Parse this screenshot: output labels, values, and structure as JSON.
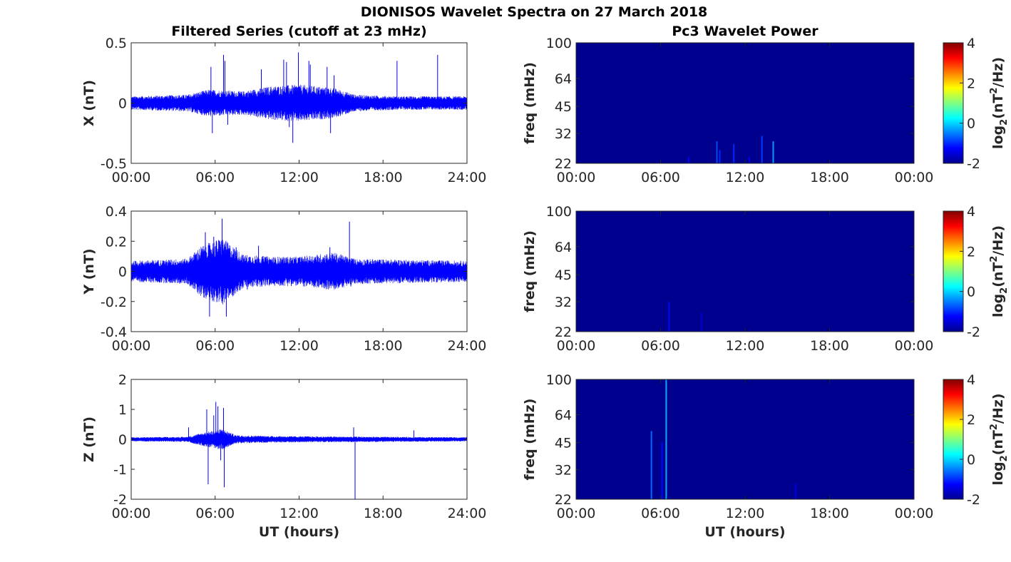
{
  "figure_title": "DIONISOS Wavelet Spectra on 27 March 2018",
  "colors": {
    "series": "#0000ff",
    "spectrogram_bg": "#00008f",
    "axis": "#262626"
  },
  "chart_data": [
    {
      "type": "line",
      "panel": "filtered-x",
      "title": "Filtered Series (cutoff at 23 mHz)",
      "ylabel": "X (nT)",
      "xlabel": "",
      "xticks": [
        "00:00",
        "06:00",
        "12:00",
        "18:00",
        "24:00"
      ],
      "xlim": [
        0,
        24
      ],
      "ylim": [
        -0.5,
        0.5
      ],
      "yticks": [
        -0.5,
        0,
        0.5
      ],
      "yticklabels": [
        "-0.5",
        "0",
        "0.5"
      ],
      "series": [
        {
          "noise_envelope": [
            [
              0,
              0.04
            ],
            [
              4,
              0.05
            ],
            [
              5.5,
              0.08
            ],
            [
              8,
              0.07
            ],
            [
              10,
              0.1
            ],
            [
              12,
              0.11
            ],
            [
              14.5,
              0.09
            ],
            [
              16,
              0.05
            ],
            [
              19,
              0.04
            ],
            [
              24,
              0.04
            ]
          ],
          "spikes": [
            [
              5.7,
              0.3
            ],
            [
              5.8,
              -0.25
            ],
            [
              6.6,
              0.4
            ],
            [
              6.7,
              0.35
            ],
            [
              6.9,
              -0.18
            ],
            [
              9.3,
              0.28
            ],
            [
              10.9,
              0.36
            ],
            [
              11.1,
              0.34
            ],
            [
              11.3,
              -0.2
            ],
            [
              11.55,
              -0.33
            ],
            [
              11.95,
              0.42
            ],
            [
              12.7,
              0.35
            ],
            [
              12.8,
              0.32
            ],
            [
              14.0,
              0.3
            ],
            [
              14.25,
              -0.25
            ],
            [
              14.5,
              0.23
            ],
            [
              19.0,
              0.35
            ],
            [
              21.9,
              0.4
            ]
          ]
        }
      ]
    },
    {
      "type": "line",
      "panel": "filtered-y",
      "title": "",
      "ylabel": "Y (nT)",
      "xlabel": "",
      "xticks": [
        "00:00",
        "06:00",
        "12:00",
        "18:00",
        "24:00"
      ],
      "xlim": [
        0,
        24
      ],
      "ylim": [
        -0.4,
        0.4
      ],
      "yticks": [
        -0.4,
        -0.2,
        0,
        0.2,
        0.4
      ],
      "yticklabels": [
        "-0.4",
        "-0.2",
        "0",
        "0.2",
        "0.4"
      ],
      "series": [
        {
          "noise_envelope": [
            [
              0,
              0.05
            ],
            [
              4,
              0.06
            ],
            [
              5,
              0.12
            ],
            [
              6.5,
              0.16
            ],
            [
              8,
              0.08
            ],
            [
              10,
              0.07
            ],
            [
              12,
              0.07
            ],
            [
              14.5,
              0.09
            ],
            [
              16,
              0.06
            ],
            [
              24,
              0.05
            ]
          ],
          "spikes": [
            [
              5.3,
              0.26
            ],
            [
              5.6,
              -0.3
            ],
            [
              5.9,
              0.23
            ],
            [
              6.1,
              0.2
            ],
            [
              6.5,
              0.35
            ],
            [
              6.8,
              -0.3
            ],
            [
              7.5,
              0.16
            ],
            [
              8.3,
              -0.12
            ],
            [
              9.1,
              0.17
            ],
            [
              14.2,
              0.16
            ],
            [
              15.6,
              0.33
            ],
            [
              15.7,
              -0.1
            ]
          ]
        }
      ]
    },
    {
      "type": "line",
      "panel": "filtered-z",
      "title": "",
      "ylabel": "Z (nT)",
      "xlabel": "UT (hours)",
      "xticks": [
        "00:00",
        "06:00",
        "12:00",
        "18:00",
        "24:00"
      ],
      "xlim": [
        0,
        24
      ],
      "ylim": [
        -2,
        2
      ],
      "yticks": [
        -2,
        -1,
        0,
        1,
        2
      ],
      "yticklabels": [
        "-2",
        "-1",
        "0",
        "1",
        "2"
      ],
      "series": [
        {
          "noise_envelope": [
            [
              0,
              0.05
            ],
            [
              4,
              0.06
            ],
            [
              5,
              0.15
            ],
            [
              6.5,
              0.25
            ],
            [
              7.5,
              0.1
            ],
            [
              10,
              0.08
            ],
            [
              13,
              0.07
            ],
            [
              24,
              0.05
            ]
          ],
          "spikes": [
            [
              4.1,
              0.4
            ],
            [
              5.4,
              1.0
            ],
            [
              5.5,
              -1.5
            ],
            [
              5.9,
              0.8
            ],
            [
              6.05,
              1.25
            ],
            [
              6.2,
              1.1
            ],
            [
              6.4,
              -0.7
            ],
            [
              6.6,
              1.05
            ],
            [
              6.65,
              -1.6
            ],
            [
              15.9,
              0.4
            ],
            [
              16.0,
              -2.0
            ],
            [
              20.2,
              0.3
            ]
          ]
        }
      ]
    },
    {
      "type": "heatmap",
      "panel": "wavelet-x",
      "title": "Pc3 Wavelet Power",
      "ylabel": "freq (mHz)",
      "xlabel": "",
      "xticks": [
        "00:00",
        "06:00",
        "12:00",
        "18:00",
        "00:00"
      ],
      "xlim": [
        0,
        24
      ],
      "ylim": [
        22,
        100
      ],
      "yscale": "log",
      "yticks": [
        22,
        32,
        45,
        64,
        100
      ],
      "yticklabels": [
        "22",
        "32",
        "45",
        "64",
        "100"
      ],
      "colorbar": {
        "label": "log2(nT2/Hz)",
        "ticks": [
          "-2",
          "0",
          "2",
          "4"
        ],
        "lim": [
          -2,
          4
        ]
      },
      "background_level": -2,
      "features": [
        [
          8.0,
          22,
          24,
          -1.3
        ],
        [
          10.0,
          22,
          29,
          -0.8
        ],
        [
          10.2,
          22,
          26,
          -1.0
        ],
        [
          11.2,
          22,
          28,
          -1.0
        ],
        [
          12.3,
          22,
          24,
          -1.4
        ],
        [
          13.2,
          22,
          31,
          -0.9
        ],
        [
          14.0,
          22,
          29,
          -0.3
        ]
      ]
    },
    {
      "type": "heatmap",
      "panel": "wavelet-y",
      "title": "",
      "ylabel": "freq (mHz)",
      "xlabel": "",
      "xticks": [
        "00:00",
        "06:00",
        "12:00",
        "18:00",
        "00:00"
      ],
      "xlim": [
        0,
        24
      ],
      "ylim": [
        22,
        100
      ],
      "yscale": "log",
      "yticks": [
        22,
        32,
        45,
        64,
        100
      ],
      "yticklabels": [
        "22",
        "32",
        "45",
        "64",
        "100"
      ],
      "colorbar": {
        "label": "log2(nT2/Hz)",
        "ticks": [
          "-2",
          "0",
          "2",
          "4"
        ],
        "lim": [
          -2,
          4
        ]
      },
      "background_level": -2,
      "features": [
        [
          6.6,
          22,
          32,
          -1.2
        ],
        [
          8.9,
          22,
          28,
          -1.5
        ]
      ]
    },
    {
      "type": "heatmap",
      "panel": "wavelet-z",
      "title": "",
      "ylabel": "freq (mHz)",
      "xlabel": "UT (hours)",
      "xticks": [
        "00:00",
        "06:00",
        "12:00",
        "18:00",
        "00:00"
      ],
      "xlim": [
        0,
        24
      ],
      "ylim": [
        22,
        100
      ],
      "yscale": "log",
      "yticks": [
        22,
        32,
        45,
        64,
        100
      ],
      "yticklabels": [
        "22",
        "32",
        "45",
        "64",
        "100"
      ],
      "colorbar": {
        "label": "log2(nT2/Hz)",
        "ticks": [
          "-2",
          "0",
          "2",
          "4"
        ],
        "lim": [
          -2,
          4
        ]
      },
      "background_level": -2,
      "features": [
        [
          5.35,
          22,
          52,
          -0.6
        ],
        [
          6.1,
          22,
          45,
          -1.2
        ],
        [
          6.4,
          22,
          100,
          -0.2
        ],
        [
          15.6,
          22,
          27,
          -1.4
        ]
      ]
    }
  ]
}
